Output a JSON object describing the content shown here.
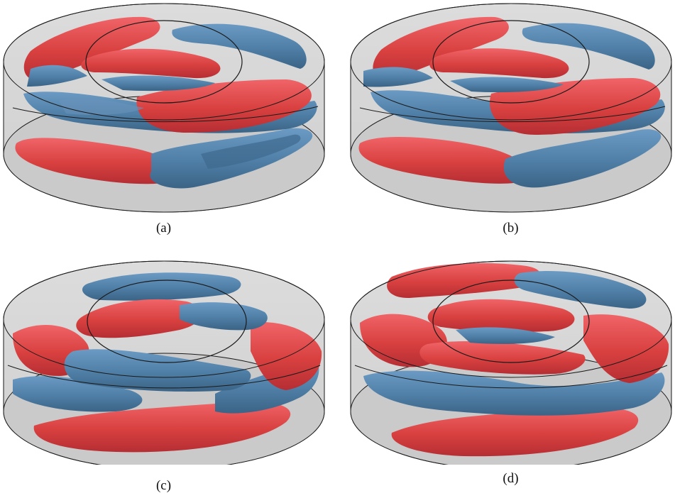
{
  "figure": {
    "panels": [
      {
        "label": "(a)"
      },
      {
        "label": "(b)"
      },
      {
        "label": "(c)"
      },
      {
        "label": "(d)"
      }
    ]
  },
  "colors": {
    "red_isosurface": "#e0484c",
    "blue_isosurface": "#4e7fa8",
    "cylinder_fill": "#d6d6d6",
    "outline": "#1a1a1a"
  }
}
